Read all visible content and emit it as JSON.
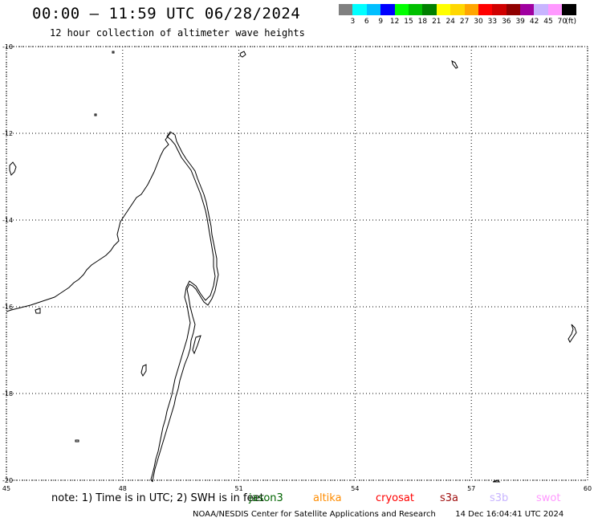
{
  "header": {
    "title": "00:00 – 11:59 UTC 06/28/2024",
    "subtitle": "12 hour collection of altimeter wave heights"
  },
  "legend": {
    "colors": [
      "#808080",
      "#00ffff",
      "#00bfff",
      "#0000ff",
      "#00ff00",
      "#00c000",
      "#008000",
      "#ffff00",
      "#ffd700",
      "#ffa500",
      "#ff0000",
      "#d00000",
      "#900000",
      "#a000a0",
      "#c8b4ff",
      "#ff99ff",
      "#000000"
    ],
    "labels": [
      "3",
      "6",
      "9",
      "12",
      "15",
      "18",
      "21",
      "24",
      "27",
      "30",
      "33",
      "36",
      "39",
      "42",
      "45",
      "70"
    ],
    "unit": "(ft)"
  },
  "map": {
    "lon_range": [
      45,
      60
    ],
    "lat_range": [
      -20,
      -10
    ],
    "lon_ticks": [
      45,
      48,
      51,
      54,
      57,
      60
    ],
    "lat_ticks": [
      -10,
      -12,
      -14,
      -16,
      -18,
      -20
    ],
    "grid": "dotted"
  },
  "footer": {
    "note": "note: 1) Time is in UTC; 2) SWH is in feet",
    "satellites": [
      {
        "name": "jason3",
        "color": "#006400"
      },
      {
        "name": "altika",
        "color": "#ff8c00"
      },
      {
        "name": "cryosat",
        "color": "#ff0000"
      },
      {
        "name": "s3a",
        "color": "#a01010"
      },
      {
        "name": "s3b",
        "color": "#c8b4ff"
      },
      {
        "name": "swot",
        "color": "#ff99ff"
      }
    ],
    "credit": "NOAA/NESDIS Center for Satellite Applications and Research",
    "timestamp": "14 Dec 16:04:41 UTC 2024"
  }
}
